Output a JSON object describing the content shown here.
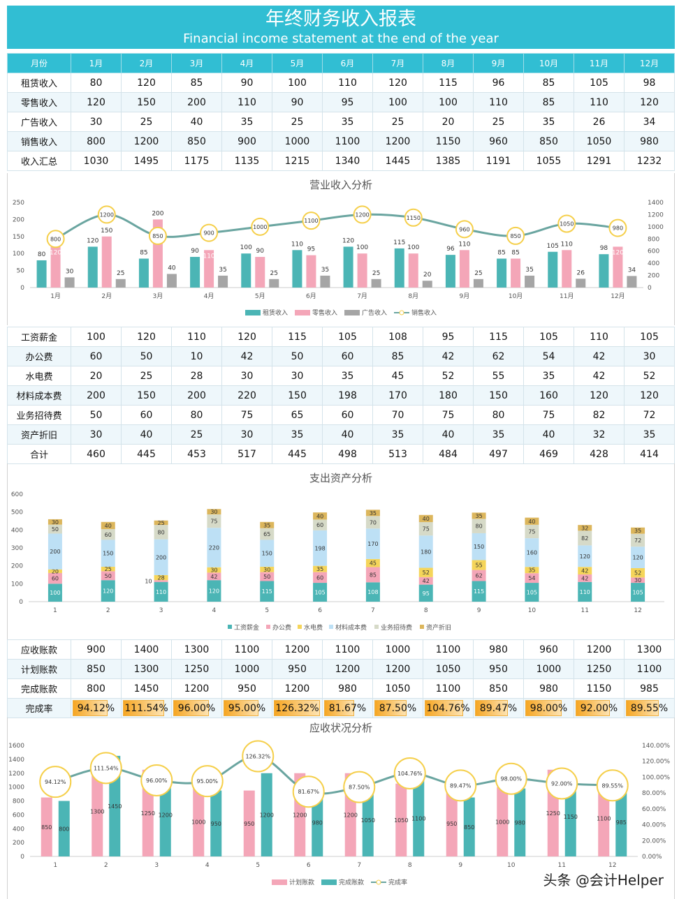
{
  "header": {
    "title": "年终财务收入报表",
    "subtitle": "Financial income statement at the end of the year"
  },
  "months": [
    "1月",
    "2月",
    "3月",
    "4月",
    "5月",
    "6月",
    "7月",
    "8月",
    "9月",
    "10月",
    "11月",
    "12月"
  ],
  "income_table": {
    "header_label": "月份",
    "rows": [
      {
        "label": "租赁收入",
        "values": [
          80,
          120,
          85,
          90,
          100,
          110,
          120,
          115,
          96,
          85,
          105,
          98
        ]
      },
      {
        "label": "零售收入",
        "values": [
          120,
          150,
          200,
          110,
          90,
          95,
          100,
          100,
          110,
          85,
          110,
          120
        ]
      },
      {
        "label": "广告收入",
        "values": [
          30,
          25,
          40,
          35,
          25,
          35,
          25,
          20,
          25,
          35,
          26,
          34
        ]
      },
      {
        "label": "销售收入",
        "values": [
          800,
          1200,
          850,
          900,
          1000,
          1100,
          1200,
          1150,
          960,
          850,
          1050,
          980
        ]
      },
      {
        "label": "收入汇总",
        "values": [
          1030,
          1495,
          1175,
          1135,
          1215,
          1340,
          1445,
          1385,
          1191,
          1055,
          1291,
          1232
        ]
      }
    ]
  },
  "expense_table": {
    "rows": [
      {
        "label": "工资薪金",
        "values": [
          100,
          120,
          110,
          120,
          115,
          105,
          108,
          95,
          115,
          105,
          110,
          105
        ]
      },
      {
        "label": "办公费",
        "values": [
          60,
          50,
          10,
          42,
          50,
          60,
          85,
          42,
          62,
          54,
          42,
          30
        ]
      },
      {
        "label": "水电费",
        "values": [
          20,
          25,
          28,
          30,
          30,
          35,
          45,
          52,
          55,
          35,
          42,
          52
        ]
      },
      {
        "label": "材料成本费",
        "values": [
          200,
          150,
          200,
          220,
          150,
          198,
          170,
          180,
          150,
          160,
          120,
          120
        ]
      },
      {
        "label": "业务招待费",
        "values": [
          50,
          60,
          80,
          75,
          65,
          60,
          70,
          75,
          80,
          75,
          82,
          72
        ]
      },
      {
        "label": "资产折旧",
        "values": [
          30,
          40,
          25,
          30,
          35,
          40,
          35,
          40,
          35,
          40,
          32,
          35
        ]
      },
      {
        "label": "合计",
        "values": [
          460,
          445,
          453,
          517,
          445,
          498,
          513,
          484,
          497,
          469,
          428,
          414
        ]
      }
    ]
  },
  "receivable_table": {
    "rows": [
      {
        "label": "应收账款",
        "values": [
          900,
          1400,
          1300,
          1100,
          1200,
          1100,
          1000,
          1100,
          980,
          960,
          1200,
          1300
        ]
      },
      {
        "label": "计划账款",
        "values": [
          850,
          1300,
          1250,
          1000,
          950,
          1200,
          1200,
          1050,
          950,
          1000,
          1250,
          1100
        ]
      },
      {
        "label": "完成账款",
        "values": [
          800,
          1450,
          1200,
          950,
          1200,
          980,
          1050,
          1100,
          850,
          980,
          1150,
          985
        ]
      }
    ],
    "rate_row": {
      "label": "完成率",
      "values": [
        "94.12%",
        "111.54%",
        "96.00%",
        "95.00%",
        "126.32%",
        "81.67%",
        "87.50%",
        "104.76%",
        "89.47%",
        "98.00%",
        "92.00%",
        "89.55%"
      ],
      "fractions": [
        0.9412,
        1.1154,
        0.96,
        0.95,
        1.2632,
        0.8167,
        0.875,
        1.0476,
        0.8947,
        0.98,
        0.92,
        0.8955
      ]
    }
  },
  "chart_data": [
    {
      "type": "bar",
      "title": "营业收入分析",
      "categories": [
        "1月",
        "2月",
        "3月",
        "4月",
        "5月",
        "6月",
        "7月",
        "8月",
        "9月",
        "10月",
        "11月",
        "12月"
      ],
      "ylim": [
        0,
        250
      ],
      "yticks": [
        0,
        50,
        100,
        150,
        200,
        250
      ],
      "y2lim": [
        0,
        1400
      ],
      "y2ticks": [
        0,
        200,
        400,
        600,
        800,
        1000,
        1200,
        1400
      ],
      "legend": "bottom",
      "series": [
        {
          "name": "租赁收入",
          "kind": "bar",
          "color": "#4bb5b5",
          "values": [
            80,
            120,
            85,
            90,
            100,
            110,
            120,
            115,
            96,
            85,
            105,
            98
          ]
        },
        {
          "name": "零售收入",
          "kind": "bar",
          "color": "#f4a6b8",
          "values": [
            120,
            150,
            200,
            110,
            90,
            95,
            100,
            100,
            110,
            85,
            110,
            120
          ]
        },
        {
          "name": "广告收入",
          "kind": "bar",
          "color": "#a5a5a5",
          "values": [
            30,
            25,
            40,
            35,
            25,
            35,
            25,
            20,
            25,
            35,
            26,
            34
          ]
        },
        {
          "name": "销售收入",
          "kind": "line",
          "axis": "right",
          "color": "#6aa5a0",
          "marker": "#f5cf4a",
          "values": [
            800,
            1200,
            850,
            900,
            1000,
            1100,
            1200,
            1150,
            960,
            850,
            1050,
            980
          ]
        }
      ]
    },
    {
      "type": "bar",
      "stacked": true,
      "title": "支出资产分析",
      "categories": [
        "1",
        "2",
        "3",
        "4",
        "5",
        "6",
        "7",
        "8",
        "9",
        "10",
        "11",
        "12"
      ],
      "ylim": [
        0,
        600
      ],
      "yticks": [
        0,
        100,
        200,
        300,
        400,
        500,
        600
      ],
      "legend": "bottom",
      "series": [
        {
          "name": "工资薪金",
          "color": "#4bb5b5",
          "values": [
            100,
            120,
            110,
            120,
            115,
            105,
            108,
            95,
            115,
            105,
            110,
            105
          ]
        },
        {
          "name": "办公费",
          "color": "#f4a6b8",
          "values": [
            60,
            50,
            10,
            42,
            50,
            60,
            85,
            42,
            62,
            54,
            42,
            30
          ]
        },
        {
          "name": "水电费",
          "color": "#f5d55a",
          "values": [
            20,
            25,
            28,
            30,
            30,
            35,
            45,
            52,
            55,
            35,
            42,
            52
          ]
        },
        {
          "name": "材料成本费",
          "color": "#bde0f5",
          "values": [
            200,
            150,
            200,
            220,
            150,
            198,
            170,
            180,
            150,
            160,
            120,
            120
          ]
        },
        {
          "name": "业务招待费",
          "color": "#d6dac8",
          "values": [
            50,
            60,
            80,
            75,
            65,
            60,
            70,
            75,
            80,
            75,
            82,
            72
          ]
        },
        {
          "name": "资产折旧",
          "color": "#dcb65c",
          "values": [
            30,
            40,
            25,
            30,
            35,
            40,
            35,
            40,
            35,
            40,
            32,
            35
          ]
        }
      ]
    },
    {
      "type": "bar",
      "title": "应收状况分析",
      "categories": [
        "1",
        "2",
        "3",
        "4",
        "5",
        "6",
        "7",
        "8",
        "9",
        "10",
        "11",
        "12"
      ],
      "ylim": [
        0,
        1600
      ],
      "yticks": [
        0,
        200,
        400,
        600,
        800,
        1000,
        1200,
        1400,
        1600
      ],
      "y2lim": [
        0,
        1.4
      ],
      "y2ticks": [
        "0.00%",
        "20.00%",
        "40.00%",
        "60.00%",
        "80.00%",
        "100.00%",
        "120.00%",
        "140.00%"
      ],
      "legend": "bottom",
      "series": [
        {
          "name": "计划账款",
          "kind": "bar",
          "color": "#f4a6b8",
          "values": [
            850,
            1300,
            1250,
            1000,
            950,
            1200,
            1200,
            1050,
            950,
            1000,
            1250,
            1100
          ]
        },
        {
          "name": "完成账款",
          "kind": "bar",
          "color": "#4bb5b5",
          "values": [
            800,
            1450,
            1200,
            950,
            1200,
            980,
            1050,
            1100,
            850,
            980,
            1150,
            985
          ]
        },
        {
          "name": "完成率",
          "kind": "line",
          "axis": "right",
          "color": "#6aa5a0",
          "marker": "#f5cf4a",
          "values": [
            0.9412,
            1.1154,
            0.96,
            0.95,
            1.2632,
            0.8167,
            0.875,
            1.0476,
            0.8947,
            0.98,
            0.92,
            0.8955
          ],
          "labels": [
            "94.12%",
            "111.54%",
            "96.00%",
            "95.00%",
            "126.32%",
            "81.67%",
            "87.50%",
            "104.76%",
            "89.47%",
            "98.00%",
            "92.00%",
            "89.55%"
          ]
        }
      ]
    }
  ],
  "watermark": "头条 @会计Helper"
}
